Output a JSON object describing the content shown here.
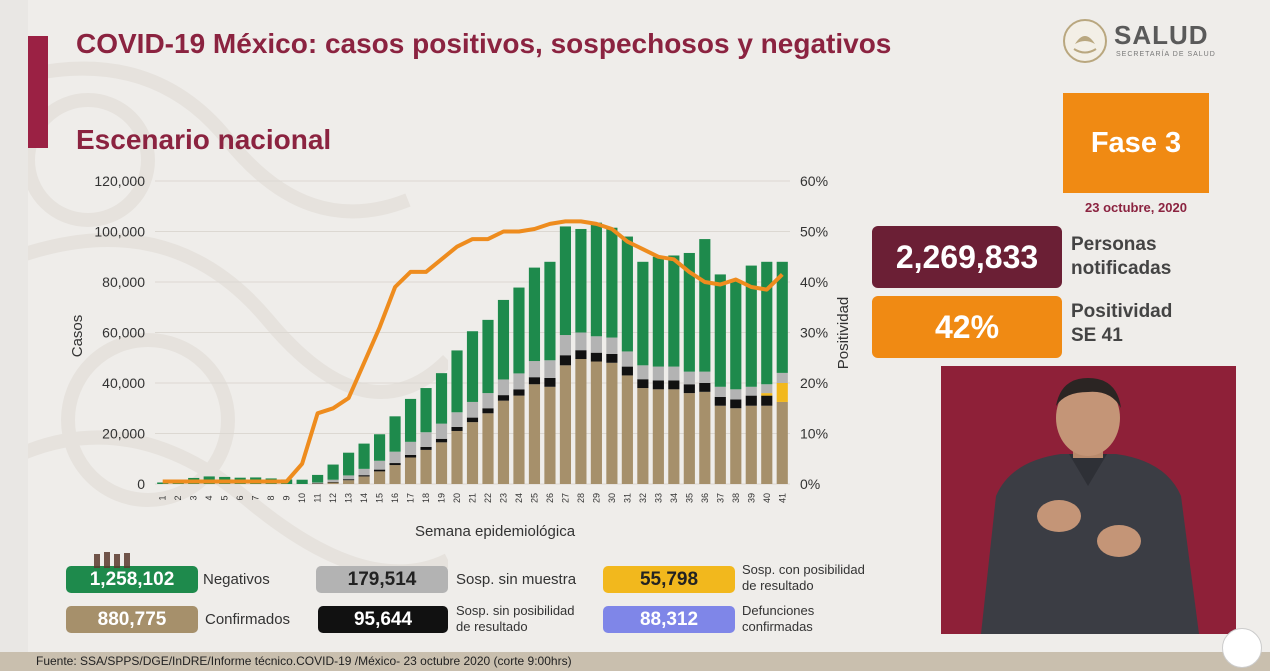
{
  "header": {
    "title": "COVID-19 México: casos positivos, sospechosos y negativos",
    "subtitle": "Escenario nacional"
  },
  "logo": {
    "name": "SALUD",
    "sub": "SECRETARÍA DE SALUD"
  },
  "phase": {
    "label": "Fase 3",
    "date": "23 octubre, 2020"
  },
  "stats": {
    "notified_value": "2,269,833",
    "notified_label_1": "Personas",
    "notified_label_2": "notificadas",
    "positivity_value": "42%",
    "positivity_label_1": "Positividad",
    "positivity_label_2": "SE 41"
  },
  "legend": {
    "negativos_value": "1,258,102",
    "negativos_label": "Negativos",
    "confirmados_value": "880,775",
    "confirmados_label": "Confirmados",
    "sin_muestra_value": "179,514",
    "sin_muestra_label": "Sosp. sin muestra",
    "sin_posibilidad_value": "95,644",
    "sin_posibilidad_label_1": "Sosp. sin posibilidad",
    "sin_posibilidad_label_2": "de resultado",
    "con_posibilidad_value": "55,798",
    "con_posibilidad_label_1": "Sosp. con posibilidad",
    "con_posibilidad_label_2": "de resultado",
    "defunciones_value": "88,312",
    "defunciones_label_1": "Defunciones",
    "defunciones_label_2": "confirmadas"
  },
  "footer": {
    "source": "Fuente: SSA/SPPS/DGE/InDRE/Informe técnico.COVID-19 /México- 23 octubre 2020 (corte 9:00hrs)"
  },
  "colors": {
    "title": "#8b2340",
    "confirmados": "#a6906b",
    "negativos": "#1e8a4c",
    "sin_muestra": "#b3b3b3",
    "sin_posibilidad": "#111111",
    "con_posibilidad": "#f2b81d",
    "defunciones": "#7f86e8",
    "positivity_line": "#ee8c1e"
  },
  "chart_data": {
    "type": "bar",
    "stacked": true,
    "xlabel": "Semana epidemiológica",
    "ylabel": "Casos",
    "y2label": "Positividad",
    "ylim": [
      0,
      120000
    ],
    "y2lim": [
      0,
      60
    ],
    "yticks": [
      "0",
      "20,000",
      "40,000",
      "60,000",
      "80,000",
      "100,000",
      "120,000"
    ],
    "y2ticks": [
      "0%",
      "10%",
      "20%",
      "30%",
      "40%",
      "50%",
      "60%"
    ],
    "categories": [
      "1",
      "2",
      "3",
      "4",
      "5",
      "6",
      "7",
      "8",
      "9",
      "10",
      "11",
      "12",
      "13",
      "14",
      "15",
      "16",
      "17",
      "18",
      "19",
      "20",
      "21",
      "22",
      "23",
      "24",
      "25",
      "26",
      "27",
      "28",
      "29",
      "30",
      "31",
      "32",
      "33",
      "34",
      "35",
      "36",
      "37",
      "38",
      "39",
      "40",
      "41"
    ],
    "series": [
      {
        "key": "confirmados",
        "values": [
          0,
          0,
          0,
          0,
          0,
          0,
          0,
          0,
          0,
          0,
          200,
          600,
          1500,
          3000,
          5000,
          7500,
          10500,
          13500,
          16500,
          21000,
          24500,
          28000,
          33000,
          35000,
          39500,
          38500,
          47000,
          49500,
          48500,
          48000,
          43000,
          38000,
          37500,
          37500,
          36000,
          36500,
          31000,
          30000,
          31000,
          31000,
          32500
        ]
      },
      {
        "key": "sin_posibilidad",
        "values": [
          0,
          0,
          0,
          0,
          0,
          0,
          0,
          0,
          0,
          0,
          100,
          200,
          400,
          500,
          700,
          800,
          1000,
          1200,
          1400,
          1600,
          1800,
          2000,
          2200,
          2500,
          2800,
          3500,
          4000,
          3500,
          3500,
          3500,
          3500,
          3500,
          3500,
          3500,
          3500,
          3500,
          3500,
          3500,
          4000,
          4000,
          0
        ]
      },
      {
        "key": "con_posibilidad",
        "values": [
          0,
          0,
          0,
          0,
          0,
          0,
          0,
          0,
          0,
          0,
          0,
          0,
          0,
          0,
          0,
          0,
          0,
          0,
          0,
          0,
          0,
          0,
          0,
          0,
          0,
          0,
          0,
          0,
          0,
          0,
          0,
          0,
          0,
          0,
          0,
          0,
          0,
          0,
          0,
          1000,
          7500
        ]
      },
      {
        "key": "sin_muestra",
        "values": [
          0,
          0,
          0,
          0,
          0,
          0,
          0,
          0,
          0,
          0,
          300,
          900,
          1500,
          2500,
          3500,
          4500,
          5200,
          5800,
          6000,
          5800,
          6200,
          6000,
          6200,
          6300,
          6400,
          7000,
          8000,
          7000,
          6500,
          6500,
          6000,
          5500,
          5500,
          5500,
          5000,
          4500,
          4000,
          4000,
          3500,
          3500,
          4000
        ]
      },
      {
        "key": "negativos",
        "values": [
          600,
          1600,
          2400,
          3000,
          2800,
          2500,
          2600,
          2200,
          1800,
          1700,
          3000,
          6000,
          9000,
          10000,
          10500,
          14000,
          17000,
          17500,
          20000,
          24500,
          28000,
          29000,
          31500,
          34000,
          37000,
          39000,
          43000,
          41000,
          45000,
          43500,
          45500,
          41000,
          43500,
          44000,
          47000,
          52500,
          44500,
          43000,
          48000,
          48500,
          44000
        ]
      }
    ],
    "positivity": [
      0.5,
      0.5,
      0.5,
      0.5,
      0.5,
      0.5,
      0.5,
      0.5,
      0.5,
      4,
      14,
      15,
      17,
      24,
      31,
      39,
      42,
      42,
      44.5,
      47,
      48.5,
      48.5,
      50,
      50,
      50.5,
      51.5,
      52,
      52,
      51.5,
      50.5,
      48,
      46.5,
      45,
      44.5,
      42,
      40,
      39.5,
      40.5,
      39,
      38.5,
      41.5
    ]
  }
}
